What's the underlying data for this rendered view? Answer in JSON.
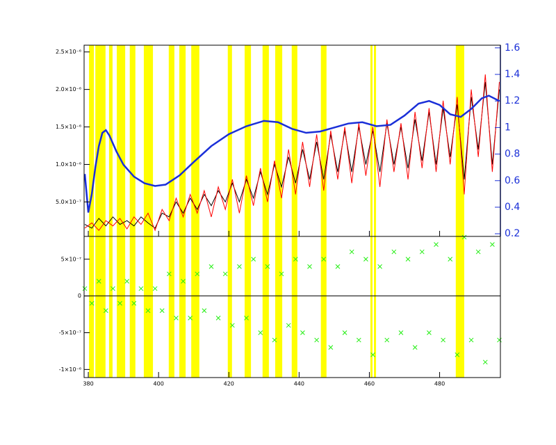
{
  "chart_data": [
    {
      "type": "line",
      "xlim": [
        378.8,
        497.3
      ],
      "xticks": [
        380,
        400,
        420,
        440,
        460,
        480
      ],
      "ylim": [
        4e-08,
        2.59e-06
      ],
      "yticks": [
        {
          "value": 5e-07,
          "label": "5.0×10⁻⁷"
        },
        {
          "value": 1e-06,
          "label": "1.0×10⁻⁶"
        },
        {
          "value": 1.5e-06,
          "label": "1.5×10⁻⁶"
        },
        {
          "value": 2e-06,
          "label": "2.0×10⁻⁶"
        },
        {
          "value": 2.5e-06,
          "label": "2.5×10⁻⁶"
        }
      ],
      "y2lim": [
        0.18,
        1.62
      ],
      "y2ticks": [
        0.2,
        0.4,
        0.6,
        0.8,
        1.0,
        1.2,
        1.4,
        1.6
      ],
      "y2color": "#1a2fd8",
      "band_color": "#ffff00",
      "bands": [
        [
          380.2,
          381.6
        ],
        [
          382.0,
          384.9
        ],
        [
          385.9,
          386.9
        ],
        [
          388.1,
          390.5
        ],
        [
          391.8,
          393.4
        ],
        [
          395.8,
          398.4
        ],
        [
          402.9,
          404.5
        ],
        [
          405.9,
          407.7
        ],
        [
          409.3,
          411.6
        ],
        [
          419.7,
          420.9
        ],
        [
          424.5,
          426.3
        ],
        [
          429.6,
          431.4
        ],
        [
          433.2,
          435.2
        ],
        [
          437.9,
          439.5
        ],
        [
          446.2,
          447.8
        ],
        [
          460.3,
          460.9
        ],
        [
          461.3,
          461.9
        ],
        [
          484.6,
          487.0
        ]
      ],
      "x": [
        379,
        381,
        383,
        385,
        387,
        389,
        391,
        393,
        395,
        397,
        399,
        401,
        403,
        405,
        407,
        409,
        411,
        413,
        415,
        417,
        419,
        421,
        423,
        425,
        427,
        429,
        431,
        433,
        435,
        437,
        439,
        441,
        443,
        445,
        447,
        449,
        451,
        453,
        455,
        457,
        459,
        461,
        463,
        465,
        467,
        469,
        471,
        473,
        475,
        477,
        479,
        481,
        483,
        485,
        487,
        489,
        491,
        493,
        495,
        497
      ],
      "series": [
        {
          "color": "#000000",
          "values": [
            2e-07,
            1.5e-07,
            2.8e-07,
            1.8e-07,
            3e-07,
            2e-07,
            2.5e-07,
            1.8e-07,
            3e-07,
            2.2e-07,
            1.5e-07,
            3.5e-07,
            3e-07,
            5e-07,
            3.5e-07,
            5.5e-07,
            4e-07,
            6e-07,
            4.5e-07,
            6.5e-07,
            5e-07,
            7.5e-07,
            5e-07,
            8e-07,
            5.5e-07,
            9e-07,
            6e-07,
            1e-06,
            7e-07,
            1.1e-06,
            7.5e-07,
            1.2e-06,
            8e-07,
            1.3e-06,
            8e-07,
            1.4e-06,
            9e-07,
            1.45e-06,
            9e-07,
            1.5e-06,
            1e-06,
            1.45e-06,
            9e-07,
            1.55e-06,
            1e-06,
            1.5e-06,
            9.5e-07,
            1.6e-06,
            1.05e-06,
            1.7e-06,
            1e-06,
            1.75e-06,
            1.1e-06,
            1.8e-06,
            8e-07,
            1.9e-06,
            1.2e-06,
            2.1e-06,
            1e-06,
            2e-06
          ]
        },
        {
          "color": "#ff0000",
          "values": [
            1.5e-07,
            2.2e-07,
            1.2e-07,
            2.5e-07,
            1.8e-07,
            2.8e-07,
            1.4e-07,
            3e-07,
            2e-07,
            3.5e-07,
            1.2e-07,
            4e-07,
            2.5e-07,
            5.5e-07,
            3e-07,
            6e-07,
            3.5e-07,
            6.5e-07,
            3e-07,
            7e-07,
            4e-07,
            8e-07,
            3.5e-07,
            8.5e-07,
            4.5e-07,
            9.5e-07,
            5e-07,
            1.05e-06,
            5.5e-07,
            1.2e-06,
            6e-07,
            1.3e-06,
            7e-07,
            1.4e-06,
            6.5e-07,
            1.45e-06,
            8e-07,
            1.5e-06,
            7.5e-07,
            1.55e-06,
            8.5e-07,
            1.5e-06,
            7e-07,
            1.6e-06,
            9e-07,
            1.55e-06,
            8e-07,
            1.7e-06,
            9.5e-07,
            1.75e-06,
            9e-07,
            1.85e-06,
            1e-06,
            1.9e-06,
            6e-07,
            2e-06,
            1.1e-06,
            2.2e-06,
            9e-07,
            2.1e-06
          ]
        },
        {
          "color": "#1a2fd8",
          "axis": "y2",
          "x": [
            379,
            380,
            381,
            382,
            383,
            384,
            385,
            386,
            388,
            390,
            393,
            396,
            399,
            402,
            406,
            410,
            415,
            420,
            425,
            430,
            434,
            438,
            442,
            446,
            450,
            454,
            458,
            462,
            466,
            470,
            474,
            477,
            480,
            483,
            486,
            489,
            492,
            494,
            497
          ],
          "values": [
            0.65,
            0.36,
            0.5,
            0.7,
            0.86,
            0.96,
            0.98,
            0.94,
            0.82,
            0.72,
            0.63,
            0.58,
            0.56,
            0.57,
            0.64,
            0.74,
            0.86,
            0.95,
            1.01,
            1.05,
            1.04,
            0.99,
            0.96,
            0.97,
            1.0,
            1.03,
            1.04,
            1.01,
            1.02,
            1.09,
            1.18,
            1.2,
            1.17,
            1.1,
            1.08,
            1.14,
            1.22,
            1.24,
            1.2
          ]
        }
      ]
    },
    {
      "type": "scatter",
      "xlim": [
        378.8,
        497.3
      ],
      "xticks": [
        380,
        400,
        420,
        440,
        460,
        480
      ],
      "ylim": [
        -1.11e-06,
        8.1e-07
      ],
      "yticks": [
        {
          "value": -1e-06,
          "label": "-1×10⁻⁶"
        },
        {
          "value": -5e-07,
          "label": "-5×10⁻⁷"
        },
        0,
        {
          "value": 5e-07,
          "label": "5×10⁻⁷"
        }
      ],
      "color": "#22ee11",
      "x": [
        379,
        381,
        383,
        385,
        387,
        389,
        391,
        393,
        395,
        397,
        399,
        401,
        403,
        405,
        407,
        409,
        411,
        413,
        415,
        417,
        419,
        421,
        423,
        425,
        427,
        429,
        431,
        433,
        435,
        437,
        439,
        441,
        443,
        445,
        447,
        449,
        451,
        453,
        455,
        457,
        459,
        461,
        463,
        465,
        467,
        469,
        471,
        473,
        475,
        477,
        479,
        481,
        483,
        485,
        487,
        489,
        491,
        493,
        495,
        497
      ],
      "values": [
        1e-07,
        -1e-07,
        2e-07,
        -2e-07,
        1e-07,
        -1e-07,
        2e-07,
        -1e-07,
        1e-07,
        -2e-07,
        1e-07,
        -2e-07,
        3e-07,
        -3e-07,
        2e-07,
        -3e-07,
        3e-07,
        -2e-07,
        4e-07,
        -3e-07,
        3e-07,
        -4e-07,
        4e-07,
        -3e-07,
        5e-07,
        -5e-07,
        4e-07,
        -6e-07,
        3e-07,
        -4e-07,
        5e-07,
        -5e-07,
        4e-07,
        -6e-07,
        5e-07,
        -7e-07,
        4e-07,
        -5e-07,
        6e-07,
        -6e-07,
        5e-07,
        -8e-07,
        4e-07,
        -6e-07,
        6e-07,
        -5e-07,
        5e-07,
        -7e-07,
        6e-07,
        -5e-07,
        7e-07,
        -6e-07,
        5e-07,
        -8e-07,
        8e-07,
        -6e-07,
        6e-07,
        -9e-07,
        7e-07,
        -6e-07
      ]
    }
  ]
}
